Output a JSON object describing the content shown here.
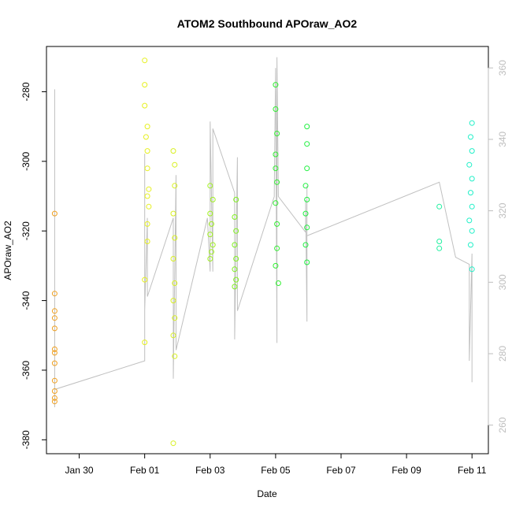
{
  "chart_data": {
    "type": "scatter",
    "title": "ATOM2 Southbound APOraw_AO2",
    "xlabel": "Date",
    "ylabel": "APOraw_AO2",
    "xlim": [
      "2024-01-29T00:00",
      "2024-02-11T12:00"
    ],
    "ylim": [
      -384,
      -267
    ],
    "x_ticks": [
      {
        "x": "2024-01-30",
        "label": "Jan 30"
      },
      {
        "x": "2024-02-01",
        "label": "Feb 01"
      },
      {
        "x": "2024-02-03",
        "label": "Feb 03"
      },
      {
        "x": "2024-02-05",
        "label": "Feb 05"
      },
      {
        "x": "2024-02-07",
        "label": "Feb 07"
      },
      {
        "x": "2024-02-09",
        "label": "Feb 09"
      },
      {
        "x": "2024-02-11",
        "label": "Feb 11"
      }
    ],
    "y_ticks": [
      -380,
      -360,
      -340,
      -320,
      -300,
      -280
    ],
    "y2_ticks": [
      260,
      280,
      300,
      320,
      340,
      360
    ],
    "y2_range": [
      252,
      366
    ],
    "grid": false,
    "legend": "none",
    "colors": {
      "points_gradient": [
        "#f0a020",
        "#e8e820",
        "#b8f020",
        "#70f020",
        "#20f040",
        "#20f0a0",
        "#20f0d0"
      ],
      "line": "#c0c0c0",
      "right_axis": "#bdbdbd"
    },
    "series": [
      {
        "color": "#f0a020",
        "points": [
          [
            "2024-01-29T06:00",
            -315
          ],
          [
            "2024-01-29T06:00",
            -338
          ],
          [
            "2024-01-29T06:00",
            -343
          ],
          [
            "2024-01-29T06:00",
            -345
          ],
          [
            "2024-01-29T06:00",
            -348
          ],
          [
            "2024-01-29T06:00",
            -354
          ],
          [
            "2024-01-29T06:00",
            -355
          ],
          [
            "2024-01-29T06:00",
            -358
          ],
          [
            "2024-01-29T06:00",
            -363
          ],
          [
            "2024-01-29T06:00",
            -366
          ],
          [
            "2024-01-29T06:00",
            -368
          ],
          [
            "2024-01-29T06:00",
            -369
          ]
        ]
      },
      {
        "color": "#e6f020",
        "points": [
          [
            "2024-02-01T00:00",
            -271
          ],
          [
            "2024-02-01T00:00",
            -278
          ],
          [
            "2024-02-01T00:00",
            -284
          ],
          [
            "2024-02-01T02:00",
            -290
          ],
          [
            "2024-02-01T02:00",
            -297
          ],
          [
            "2024-02-01T02:00",
            -302
          ],
          [
            "2024-02-01T03:00",
            -308
          ],
          [
            "2024-02-01T03:00",
            -313
          ],
          [
            "2024-02-01T02:00",
            -318
          ],
          [
            "2024-02-01T02:00",
            -323
          ],
          [
            "2024-02-01T00:00",
            -334
          ],
          [
            "2024-02-01T00:00",
            -352
          ],
          [
            "2024-02-01T01:00",
            -293
          ],
          [
            "2024-02-01T02:00",
            -310
          ]
        ]
      },
      {
        "color": "#d8f020",
        "points": [
          [
            "2024-02-01T21:00",
            -297
          ],
          [
            "2024-02-01T22:00",
            -301
          ],
          [
            "2024-02-01T22:00",
            -307
          ],
          [
            "2024-02-01T21:00",
            -315
          ],
          [
            "2024-02-01T22:00",
            -322
          ],
          [
            "2024-02-01T21:00",
            -328
          ],
          [
            "2024-02-01T22:00",
            -335
          ],
          [
            "2024-02-01T21:00",
            -340
          ],
          [
            "2024-02-01T22:00",
            -345
          ],
          [
            "2024-02-01T21:00",
            -350
          ],
          [
            "2024-02-01T22:00",
            -356
          ],
          [
            "2024-02-01T21:00",
            -381
          ]
        ]
      },
      {
        "color": "#a0f020",
        "points": [
          [
            "2024-02-03T00:00",
            -307
          ],
          [
            "2024-02-03T02:00",
            -311
          ],
          [
            "2024-02-03T00:00",
            -315
          ],
          [
            "2024-02-03T01:00",
            -318
          ],
          [
            "2024-02-03T00:00",
            -321
          ],
          [
            "2024-02-03T02:00",
            -324
          ],
          [
            "2024-02-03T01:00",
            -326
          ],
          [
            "2024-02-03T00:00",
            -328
          ]
        ]
      },
      {
        "color": "#80f020",
        "points": [
          [
            "2024-02-03T19:00",
            -311
          ],
          [
            "2024-02-03T18:00",
            -316
          ],
          [
            "2024-02-03T19:00",
            -320
          ],
          [
            "2024-02-03T18:00",
            -324
          ],
          [
            "2024-02-03T19:00",
            -328
          ],
          [
            "2024-02-03T18:00",
            -331
          ],
          [
            "2024-02-03T19:00",
            -334
          ],
          [
            "2024-02-03T18:00",
            -336
          ]
        ]
      },
      {
        "color": "#30f030",
        "points": [
          [
            "2024-02-05T00:00",
            -278
          ],
          [
            "2024-02-05T00:00",
            -285
          ],
          [
            "2024-02-05T01:00",
            -292
          ],
          [
            "2024-02-05T00:00",
            -298
          ],
          [
            "2024-02-05T00:00",
            -302
          ],
          [
            "2024-02-05T01:00",
            -306
          ],
          [
            "2024-02-05T00:00",
            -312
          ],
          [
            "2024-02-05T01:00",
            -318
          ],
          [
            "2024-02-05T01:00",
            -325
          ],
          [
            "2024-02-05T00:00",
            -330
          ],
          [
            "2024-02-05T02:00",
            -335
          ]
        ]
      },
      {
        "color": "#20f040",
        "points": [
          [
            "2024-02-05T23:00",
            -290
          ],
          [
            "2024-02-05T23:00",
            -295
          ],
          [
            "2024-02-05T23:00",
            -302
          ],
          [
            "2024-02-05T22:00",
            -307
          ],
          [
            "2024-02-05T23:00",
            -311
          ],
          [
            "2024-02-05T22:00",
            -315
          ],
          [
            "2024-02-05T23:00",
            -319
          ],
          [
            "2024-02-05T22:00",
            -324
          ],
          [
            "2024-02-05T23:00",
            -329
          ]
        ]
      },
      {
        "color": "#20f0a0",
        "points": [
          [
            "2024-02-10T00:00",
            -313
          ],
          [
            "2024-02-10T00:00",
            -323
          ],
          [
            "2024-02-10T00:00",
            -325
          ]
        ]
      },
      {
        "color": "#20f0c8",
        "points": [
          [
            "2024-02-11T00:00",
            -289
          ],
          [
            "2024-02-10T23:00",
            -293
          ],
          [
            "2024-02-11T00:00",
            -297
          ],
          [
            "2024-02-10T22:00",
            -301
          ],
          [
            "2024-02-11T00:00",
            -305
          ],
          [
            "2024-02-10T23:00",
            -309
          ],
          [
            "2024-02-11T00:00",
            -313
          ],
          [
            "2024-02-10T22:00",
            -317
          ],
          [
            "2024-02-11T00:00",
            -320
          ],
          [
            "2024-02-10T23:00",
            -324
          ],
          [
            "2024-02-11T00:00",
            -331
          ]
        ]
      }
    ],
    "line_series": {
      "color": "#c0c0c0",
      "axis": "right",
      "points": [
        [
          "2024-01-29T06:00",
          265
        ],
        [
          "2024-01-29T06:00",
          354
        ],
        [
          "2024-01-29T06:00",
          270
        ],
        [
          "2024-02-01T00:00",
          278
        ],
        [
          "2024-02-01T00:00",
          336
        ],
        [
          "2024-02-01T00:00",
          292
        ],
        [
          "2024-02-01T02:00",
          318
        ],
        [
          "2024-02-01T02:00",
          296
        ],
        [
          "2024-02-01T21:00",
          318
        ],
        [
          "2024-02-01T21:00",
          273
        ],
        [
          "2024-02-01T23:00",
          330
        ],
        [
          "2024-02-01T23:00",
          281
        ],
        [
          "2024-02-02T22:00",
          318
        ],
        [
          "2024-02-03T00:00",
          303
        ],
        [
          "2024-02-03T00:00",
          345
        ],
        [
          "2024-02-03T02:00",
          303
        ],
        [
          "2024-02-03T02:00",
          343
        ],
        [
          "2024-02-03T18:00",
          325
        ],
        [
          "2024-02-03T18:00",
          284
        ],
        [
          "2024-02-03T20:00",
          335
        ],
        [
          "2024-02-03T20:00",
          292
        ],
        [
          "2024-02-04T23:00",
          324
        ],
        [
          "2024-02-04T23:00",
          325
        ],
        [
          "2024-02-05T00:00",
          360
        ],
        [
          "2024-02-05T01:00",
          283
        ],
        [
          "2024-02-05T01:00",
          363
        ],
        [
          "2024-02-05T02:00",
          324
        ],
        [
          "2024-02-05T22:00",
          314
        ],
        [
          "2024-02-05T22:00",
          323
        ],
        [
          "2024-02-05T23:00",
          289
        ],
        [
          "2024-02-05T23:00",
          327
        ],
        [
          "2024-02-05T23:00",
          313
        ],
        [
          "2024-02-10T00:00",
          328
        ],
        [
          "2024-02-10T12:00",
          307
        ],
        [
          "2024-02-10T22:00",
          305
        ],
        [
          "2024-02-10T22:00",
          278
        ],
        [
          "2024-02-11T00:00",
          308
        ],
        [
          "2024-02-11T00:00",
          272
        ]
      ]
    }
  }
}
